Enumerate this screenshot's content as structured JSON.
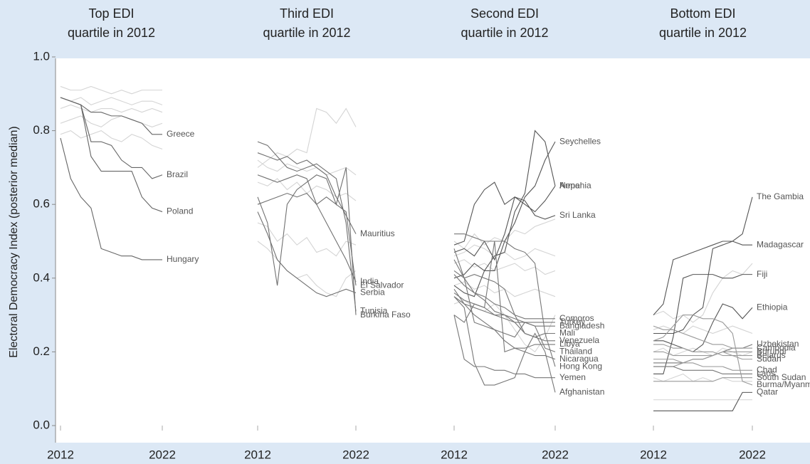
{
  "ylabel": "Electoral Democracy Index (posterior median)",
  "chart_data": [
    {
      "type": "line",
      "title": [
        "Top EDI",
        "quartile in 2012"
      ],
      "x": [
        2012,
        2013,
        2014,
        2015,
        2016,
        2017,
        2018,
        2019,
        2020,
        2021,
        2022
      ],
      "xticks": [
        2012,
        2022
      ],
      "ylim": [
        0,
        1
      ],
      "yticks": [
        {
          "value": 0,
          "label": "0.0"
        },
        0.2,
        0.4,
        0.6,
        0.8,
        {
          "value": 1,
          "label": "1.0"
        }
      ],
      "series": [
        {
          "color": "#d4d4d4",
          "values": [
            0.92,
            0.91,
            0.91,
            0.92,
            0.91,
            0.9,
            0.91,
            0.9,
            0.91,
            0.91,
            0.91
          ]
        },
        {
          "color": "#d4d4d4",
          "values": [
            0.86,
            0.87,
            0.86,
            0.85,
            0.86,
            0.86,
            0.85,
            0.86,
            0.85,
            0.86,
            0.85
          ]
        },
        {
          "color": "#d4d4d4",
          "values": [
            0.82,
            0.83,
            0.84,
            0.82,
            0.81,
            0.83,
            0.84,
            0.83,
            0.82,
            0.81,
            0.82
          ]
        },
        {
          "color": "#d4d4d4",
          "values": [
            0.79,
            0.8,
            0.78,
            0.79,
            0.8,
            0.78,
            0.77,
            0.79,
            0.78,
            0.76,
            0.75
          ]
        },
        {
          "color": "#d4d4d4",
          "values": [
            0.89,
            0.88,
            0.89,
            0.87,
            0.88,
            0.89,
            0.88,
            0.87,
            0.88,
            0.88,
            0.87
          ]
        },
        {
          "name": "Greece",
          "color": "#666666",
          "values": [
            0.89,
            0.88,
            0.87,
            0.85,
            0.85,
            0.84,
            0.84,
            0.83,
            0.82,
            0.79,
            0.79
          ]
        },
        {
          "name": "Brazil",
          "color": "#666666",
          "values": [
            0.89,
            0.88,
            0.87,
            0.77,
            0.77,
            0.76,
            0.72,
            0.7,
            0.7,
            0.67,
            0.68
          ]
        },
        {
          "name": "Poland",
          "color": "#666666",
          "values": [
            0.89,
            0.88,
            0.87,
            0.73,
            0.69,
            0.69,
            0.69,
            0.69,
            0.62,
            0.59,
            0.58
          ]
        },
        {
          "name": "Hungary",
          "color": "#666666",
          "values": [
            0.78,
            0.67,
            0.62,
            0.59,
            0.48,
            0.47,
            0.46,
            0.46,
            0.45,
            0.45,
            0.45
          ]
        }
      ]
    },
    {
      "type": "line",
      "title": [
        "Third EDI",
        "quartile in 2012"
      ],
      "x": [
        2012,
        2013,
        2014,
        2015,
        2016,
        2017,
        2018,
        2019,
        2020,
        2021,
        2022
      ],
      "xticks": [
        2012,
        2022
      ],
      "ylim": [
        0,
        1
      ],
      "series": [
        {
          "color": "#d4d4d4",
          "values": [
            0.7,
            0.72,
            0.74,
            0.73,
            0.75,
            0.74,
            0.86,
            0.85,
            0.82,
            0.86,
            0.81
          ]
        },
        {
          "color": "#d4d4d4",
          "values": [
            0.66,
            0.65,
            0.67,
            0.64,
            0.66,
            0.63,
            0.65,
            0.64,
            0.62,
            0.63,
            0.61
          ]
        },
        {
          "color": "#d4d4d4",
          "values": [
            0.55,
            0.54,
            0.5,
            0.52,
            0.49,
            0.51,
            0.47,
            0.48,
            0.46,
            0.5,
            0.49
          ]
        },
        {
          "color": "#d4d4d4",
          "values": [
            0.5,
            0.48,
            0.45,
            0.42,
            0.4,
            0.41,
            0.38,
            0.36,
            0.35,
            0.4,
            0.42
          ]
        },
        {
          "color": "#d4d4d4",
          "values": [
            0.72,
            0.7,
            0.69,
            0.71,
            0.7,
            0.69,
            0.7,
            0.68,
            0.69,
            0.7,
            0.68
          ]
        },
        {
          "name": "Mauritius",
          "color": "#707070",
          "values": [
            0.74,
            0.73,
            0.72,
            0.73,
            0.71,
            0.72,
            0.7,
            0.68,
            0.62,
            0.57,
            0.52
          ]
        },
        {
          "name": "India",
          "color": "#707070",
          "values": [
            0.68,
            0.67,
            0.66,
            0.67,
            0.68,
            0.67,
            0.6,
            0.55,
            0.5,
            0.45,
            0.39
          ]
        },
        {
          "name": "El Salvador",
          "color": "#707070",
          "values": [
            0.6,
            0.61,
            0.62,
            0.63,
            0.62,
            0.63,
            0.6,
            0.62,
            0.6,
            0.58,
            0.38
          ]
        },
        {
          "name": "Serbia",
          "color": "#707070",
          "values": [
            0.58,
            0.52,
            0.45,
            0.42,
            0.4,
            0.38,
            0.36,
            0.35,
            0.36,
            0.37,
            0.36
          ]
        },
        {
          "name": "Tunisia",
          "color": "#707070",
          "values": [
            0.77,
            0.76,
            0.73,
            0.7,
            0.69,
            0.7,
            0.71,
            0.69,
            0.67,
            0.55,
            0.31
          ]
        },
        {
          "name": "Burkina Faso",
          "color": "#707070",
          "values": [
            0.62,
            0.55,
            0.38,
            0.6,
            0.64,
            0.66,
            0.68,
            0.67,
            0.6,
            0.7,
            0.3
          ]
        }
      ]
    },
    {
      "type": "line",
      "title": [
        "Second EDI",
        "quartile in 2012"
      ],
      "x": [
        2012,
        2013,
        2014,
        2015,
        2016,
        2017,
        2018,
        2019,
        2020,
        2021,
        2022
      ],
      "xticks": [
        2012,
        2022
      ],
      "ylim": [
        0,
        1
      ],
      "series": [
        {
          "color": "#d4d4d4",
          "values": [
            0.5,
            0.48,
            0.52,
            0.49,
            0.51,
            0.5,
            0.53,
            0.52,
            0.54,
            0.55,
            0.56
          ]
        },
        {
          "color": "#d4d4d4",
          "values": [
            0.44,
            0.45,
            0.43,
            0.44,
            0.42,
            0.43,
            0.44,
            0.42,
            0.43,
            0.41,
            0.42
          ]
        },
        {
          "color": "#d4d4d4",
          "values": [
            0.38,
            0.39,
            0.37,
            0.38,
            0.36,
            0.37,
            0.35,
            0.36,
            0.37,
            0.36,
            0.35
          ]
        },
        {
          "color": "#d4d4d4",
          "values": [
            0.33,
            0.34,
            0.32,
            0.31,
            0.33,
            0.3,
            0.26,
            0.22,
            0.2,
            0.24,
            0.3
          ]
        },
        {
          "color": "#d4d4d4",
          "values": [
            0.46,
            0.47,
            0.49,
            0.48,
            0.46,
            0.47,
            0.45,
            0.46,
            0.48,
            0.47,
            0.46
          ]
        },
        {
          "name": "Seychelles",
          "color": "#555555",
          "values": [
            0.4,
            0.41,
            0.44,
            0.42,
            0.42,
            0.5,
            0.55,
            0.62,
            0.65,
            0.72,
            0.77
          ]
        },
        {
          "name": "Armenia",
          "color": "#555555",
          "values": [
            0.38,
            0.36,
            0.35,
            0.42,
            0.46,
            0.47,
            0.58,
            0.63,
            0.8,
            0.77,
            0.65
          ]
        },
        {
          "name": "Nepal",
          "color": "#555555",
          "values": [
            0.49,
            0.5,
            0.6,
            0.64,
            0.66,
            0.6,
            0.62,
            0.6,
            0.58,
            0.61,
            0.65
          ]
        },
        {
          "name": "Sri Lanka",
          "color": "#555555",
          "values": [
            0.47,
            0.48,
            0.46,
            0.5,
            0.45,
            0.52,
            0.62,
            0.61,
            0.57,
            0.56,
            0.57
          ]
        },
        {
          "name": "Comoros",
          "color": "#777777",
          "values": [
            0.45,
            0.4,
            0.36,
            0.35,
            0.33,
            0.32,
            0.3,
            0.29,
            0.29,
            0.29,
            0.29
          ]
        },
        {
          "name": "Turkey",
          "color": "#777777",
          "values": [
            0.37,
            0.33,
            0.32,
            0.31,
            0.3,
            0.29,
            0.28,
            0.28,
            0.28,
            0.28,
            0.28
          ]
        },
        {
          "name": "Bangladesh",
          "color": "#777777",
          "values": [
            0.41,
            0.38,
            0.36,
            0.34,
            0.31,
            0.3,
            0.29,
            0.28,
            0.27,
            0.27,
            0.27
          ]
        },
        {
          "name": "Mali",
          "color": "#777777",
          "values": [
            0.42,
            0.4,
            0.41,
            0.4,
            0.39,
            0.37,
            0.3,
            0.25,
            0.24,
            0.25,
            0.25
          ]
        },
        {
          "name": "Venezuela",
          "color": "#777777",
          "values": [
            0.36,
            0.34,
            0.33,
            0.32,
            0.3,
            0.3,
            0.28,
            0.25,
            0.24,
            0.23,
            0.23
          ]
        },
        {
          "name": "Libya",
          "color": "#777777",
          "values": [
            0.3,
            0.28,
            0.33,
            0.32,
            0.5,
            0.2,
            0.21,
            0.21,
            0.22,
            0.22,
            0.22
          ]
        },
        {
          "name": "Thailand",
          "color": "#777777",
          "values": [
            0.48,
            0.4,
            0.28,
            0.27,
            0.26,
            0.25,
            0.24,
            0.28,
            0.27,
            0.21,
            0.2
          ]
        },
        {
          "name": "Nicaragua",
          "color": "#777777",
          "values": [
            0.35,
            0.33,
            0.3,
            0.28,
            0.26,
            0.23,
            0.21,
            0.2,
            0.19,
            0.19,
            0.18
          ]
        },
        {
          "name": "Hong Kong",
          "color": "#777777",
          "values": [
            0.52,
            0.52,
            0.51,
            0.5,
            0.5,
            0.5,
            0.48,
            0.47,
            0.44,
            0.25,
            0.16
          ]
        },
        {
          "name": "Yemen",
          "color": "#777777",
          "values": [
            0.3,
            0.18,
            0.16,
            0.16,
            0.15,
            0.15,
            0.14,
            0.14,
            0.13,
            0.13,
            0.13
          ]
        },
        {
          "name": "Afghanistan",
          "color": "#777777",
          "values": [
            0.35,
            0.32,
            0.17,
            0.11,
            0.11,
            0.12,
            0.13,
            0.2,
            0.25,
            0.2,
            0.09
          ]
        }
      ]
    },
    {
      "type": "line",
      "title": [
        "Bottom EDI",
        "quartile in 2012"
      ],
      "x": [
        2012,
        2013,
        2014,
        2015,
        2016,
        2017,
        2018,
        2019,
        2020,
        2021,
        2022
      ],
      "xticks": [
        2012,
        2022
      ],
      "ylim": [
        0,
        1
      ],
      "series": [
        {
          "color": "#d4d4d4",
          "values": [
            0.3,
            0.31,
            0.29,
            0.3,
            0.28,
            0.3,
            0.36,
            0.4,
            0.42,
            0.41,
            0.44
          ]
        },
        {
          "color": "#d4d4d4",
          "values": [
            0.26,
            0.27,
            0.26,
            0.25,
            0.27,
            0.26,
            0.25,
            0.26,
            0.27,
            0.26,
            0.25
          ]
        },
        {
          "color": "#d4d4d4",
          "values": [
            0.2,
            0.21,
            0.19,
            0.2,
            0.21,
            0.2,
            0.19,
            0.21,
            0.2,
            0.19,
            0.2
          ]
        },
        {
          "color": "#d4d4d4",
          "values": [
            0.13,
            0.12,
            0.13,
            0.14,
            0.12,
            0.13,
            0.12,
            0.13,
            0.12,
            0.12,
            0.12
          ]
        },
        {
          "color": "#d4d4d4",
          "values": [
            0.07,
            0.07,
            0.07,
            0.07,
            0.07,
            0.07,
            0.07,
            0.07,
            0.07,
            0.07,
            0.07
          ]
        },
        {
          "name": "The Gambia",
          "color": "#555555",
          "values": [
            0.25,
            0.25,
            0.25,
            0.26,
            0.3,
            0.32,
            0.48,
            0.49,
            0.5,
            0.52,
            0.62
          ]
        },
        {
          "name": "Madagascar",
          "color": "#555555",
          "values": [
            0.3,
            0.33,
            0.45,
            0.46,
            0.47,
            0.48,
            0.49,
            0.5,
            0.5,
            0.49,
            0.49
          ]
        },
        {
          "name": "Fiji",
          "color": "#555555",
          "values": [
            0.14,
            0.14,
            0.24,
            0.4,
            0.41,
            0.41,
            0.41,
            0.4,
            0.4,
            0.41,
            0.41
          ]
        },
        {
          "name": "Ethiopia",
          "color": "#555555",
          "values": [
            0.23,
            0.23,
            0.22,
            0.21,
            0.2,
            0.22,
            0.28,
            0.33,
            0.32,
            0.29,
            0.32
          ]
        },
        {
          "name": "Uzbekistan",
          "color": "#777777",
          "values": [
            0.17,
            0.17,
            0.17,
            0.17,
            0.18,
            0.18,
            0.19,
            0.2,
            0.21,
            0.21,
            0.22
          ]
        },
        {
          "name": "Cambodia",
          "color": "#999999",
          "values": [
            0.27,
            0.26,
            0.26,
            0.25,
            0.24,
            0.23,
            0.22,
            0.22,
            0.21,
            0.21,
            0.21
          ]
        },
        {
          "name": "Burundi",
          "color": "#999999",
          "values": [
            0.2,
            0.2,
            0.19,
            0.19,
            0.19,
            0.19,
            0.19,
            0.2,
            0.2,
            0.2,
            0.2
          ]
        },
        {
          "name": "Belarus",
          "color": "#999999",
          "values": [
            0.22,
            0.22,
            0.21,
            0.21,
            0.2,
            0.2,
            0.2,
            0.19,
            0.19,
            0.19,
            0.19
          ]
        },
        {
          "name": "Sudan",
          "color": "#999999",
          "values": [
            0.16,
            0.16,
            0.16,
            0.17,
            0.18,
            0.18,
            0.19,
            0.2,
            0.19,
            0.18,
            0.18
          ]
        },
        {
          "name": "Chad",
          "color": "#999999",
          "values": [
            0.18,
            0.18,
            0.18,
            0.17,
            0.17,
            0.16,
            0.16,
            0.16,
            0.15,
            0.15,
            0.15
          ]
        },
        {
          "name": "Laos",
          "color": "#777777",
          "values": [
            0.16,
            0.16,
            0.16,
            0.15,
            0.15,
            0.15,
            0.15,
            0.14,
            0.14,
            0.14,
            0.14
          ]
        },
        {
          "name": "South Sudan",
          "color": "#999999",
          "values": [
            0.12,
            0.12,
            0.12,
            0.12,
            0.12,
            0.12,
            0.12,
            0.13,
            0.13,
            0.13,
            0.13
          ]
        },
        {
          "name": "Burma/Myanmar",
          "color": "#999999",
          "values": [
            0.23,
            0.24,
            0.27,
            0.3,
            0.3,
            0.29,
            0.29,
            0.28,
            0.25,
            0.12,
            0.11
          ]
        },
        {
          "name": "Qatar",
          "color": "#555555",
          "values": [
            0.04,
            0.04,
            0.04,
            0.04,
            0.04,
            0.04,
            0.04,
            0.04,
            0.04,
            0.09,
            0.09
          ]
        }
      ]
    }
  ]
}
